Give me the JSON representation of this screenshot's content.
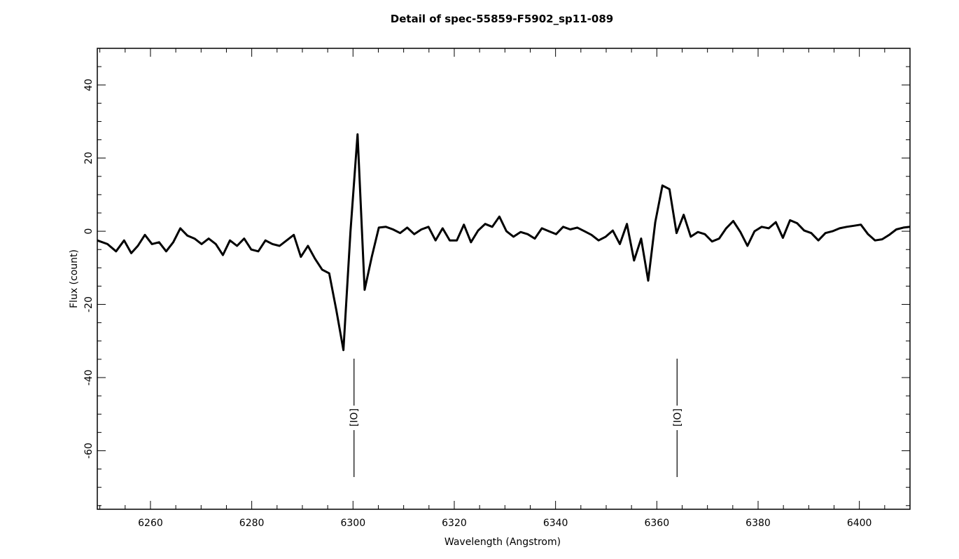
{
  "chart_data": {
    "type": "line",
    "title": "Detail of spec-55859-F5902_sp11-089",
    "xlabel": "Wavelength (Angstrom)",
    "ylabel": "Flux (count)",
    "xlim": [
      6249.5,
      6410
    ],
    "ylim": [
      -76,
      50
    ],
    "xticks": [
      6260,
      6280,
      6300,
      6320,
      6340,
      6360,
      6380,
      6400
    ],
    "yticks": [
      -60,
      -40,
      -20,
      0,
      20,
      40
    ],
    "x_minor_step": 5,
    "y_minor_step": 5,
    "grid": false,
    "line_color": "#000000",
    "series": [
      {
        "x": [
          6249.5,
          6251.5,
          6253.2,
          6254.8,
          6256.2,
          6257.5,
          6258.9,
          6260.3,
          6261.7,
          6263.1,
          6264.5,
          6265.9,
          6267.3,
          6268.7,
          6270.1,
          6271.5,
          6272.9,
          6274.3,
          6275.7,
          6277.1,
          6278.5,
          6279.9,
          6281.3,
          6282.7,
          6284.1,
          6285.5,
          6286.9,
          6288.3,
          6289.7,
          6291.1,
          6292.5,
          6293.9,
          6295.3,
          6296.7,
          6298.1,
          6299.5,
          6300.9,
          6302.3,
          6303.7,
          6305.1,
          6306.5,
          6307.9,
          6309.3,
          6310.7,
          6312.1,
          6313.5,
          6314.9,
          6316.3,
          6317.7,
          6319.1,
          6320.5,
          6321.9,
          6323.3,
          6324.7,
          6326.1,
          6327.5,
          6328.9,
          6330.3,
          6331.7,
          6333.1,
          6334.5,
          6335.9,
          6337.3,
          6338.7,
          6340.1,
          6341.5,
          6342.9,
          6344.3,
          6345.7,
          6347.1,
          6348.5,
          6349.9,
          6351.3,
          6352.7,
          6354.1,
          6355.5,
          6356.9,
          6358.3,
          6359.7,
          6361.1,
          6362.5,
          6363.9,
          6365.3,
          6366.7,
          6368.1,
          6369.5,
          6370.9,
          6372.3,
          6373.7,
          6375.1,
          6376.5,
          6377.9,
          6379.3,
          6380.7,
          6382.1,
          6383.5,
          6384.9,
          6386.3,
          6387.7,
          6389.1,
          6390.5,
          6391.9,
          6393.3,
          6394.7,
          6396.1,
          6397.5,
          6398.9,
          6400.3,
          6401.7,
          6403.1,
          6404.5,
          6405.9,
          6407.3,
          6408.7,
          6410.0
        ],
        "y": [
          -2.5,
          -3.5,
          -5.5,
          -2.5,
          -6,
          -4,
          -1,
          -3.5,
          -3,
          -5.5,
          -3,
          0.8,
          -1.2,
          -2,
          -3.5,
          -2,
          -3.5,
          -6.5,
          -2.5,
          -4,
          -2,
          -5,
          -5.5,
          -2.5,
          -3.5,
          -4,
          -2.5,
          -1,
          -7,
          -4,
          -7.5,
          -10.5,
          -11.5,
          -21.5,
          -32.5,
          0,
          26.5,
          -16,
          -7,
          1,
          1.2,
          0.5,
          -0.5,
          1,
          -0.8,
          0.5,
          1.2,
          -2.5,
          0.8,
          -2.5,
          -2.5,
          1.8,
          -3,
          0.2,
          2,
          1.2,
          4,
          0,
          -1.5,
          -0.2,
          -0.8,
          -2,
          0.8,
          0,
          -0.8,
          1.2,
          0.5,
          1,
          0,
          -1,
          -2.5,
          -1.5,
          0.2,
          -3.5,
          2,
          -8,
          -2,
          -13.5,
          2.5,
          12.5,
          11.5,
          -0.5,
          4.5,
          -1.5,
          -0.2,
          -0.8,
          -2.8,
          -2,
          0.8,
          2.8,
          -0.2,
          -4,
          0,
          1.2,
          0.8,
          2.5,
          -1.8,
          3,
          2.2,
          0.2,
          -0.5,
          -2.5,
          -0.5,
          0,
          0.8,
          1.2,
          1.5,
          1.8,
          -0.8,
          -2.5,
          -2.2,
          -1,
          0.5,
          1,
          1.2
        ]
      }
    ],
    "line_labels": [
      {
        "label": "[IO]",
        "x": 6300.2
      },
      {
        "label": "[IO]",
        "x": 6364
      }
    ]
  }
}
